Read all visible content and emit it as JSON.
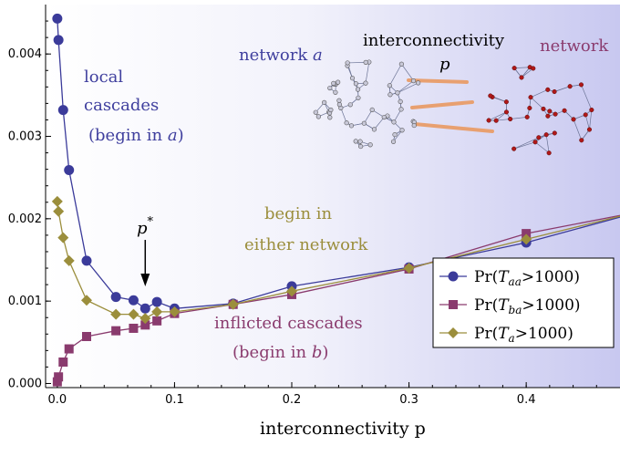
{
  "chart_data": {
    "type": "line",
    "title": "",
    "xlabel": "interconnectivity p",
    "ylabel": "",
    "xlim": [
      -0.01,
      0.48
    ],
    "ylim": [
      -5e-05,
      0.0046
    ],
    "grid": false,
    "legend_placement": "bottom-right",
    "x_ticks": [
      0.0,
      0.1,
      0.2,
      0.3,
      0.4
    ],
    "x_tick_labels": [
      "0.0",
      "0.1",
      "0.2",
      "0.3",
      "0.4"
    ],
    "y_ticks": [
      0.0,
      0.001,
      0.002,
      0.003,
      0.004
    ],
    "y_tick_labels": [
      "0.000",
      "0.001",
      "0.002",
      "0.003",
      "0.004"
    ],
    "series": [
      {
        "name": "Pr(Taa>1000)",
        "name_parts": [
          "Pr(",
          "T",
          "aa",
          ">1000)"
        ],
        "color": "#3b3b9a",
        "marker": "circle",
        "x": [
          0.0,
          0.001,
          0.005,
          0.01,
          0.025,
          0.05,
          0.065,
          0.075,
          0.085,
          0.1,
          0.15,
          0.2,
          0.3,
          0.4,
          0.48
        ],
        "y": [
          0.00443,
          0.00417,
          0.00332,
          0.00259,
          0.00149,
          0.00105,
          0.00101,
          0.00091,
          0.00099,
          0.00091,
          0.00097,
          0.00118,
          0.00141,
          0.00171,
          0.00202
        ]
      },
      {
        "name": "Pr(Tba>1000)",
        "name_parts": [
          "Pr(",
          "T",
          "ba",
          ">1000)"
        ],
        "color": "#8a3b6e",
        "marker": "square",
        "x": [
          0.0,
          0.001,
          0.005,
          0.01,
          0.025,
          0.05,
          0.065,
          0.075,
          0.085,
          0.1,
          0.15,
          0.2,
          0.3,
          0.4,
          0.48
        ],
        "y": [
          2e-05,
          8e-05,
          0.00026,
          0.00042,
          0.00057,
          0.00064,
          0.00067,
          0.00071,
          0.00076,
          0.00085,
          0.00096,
          0.00108,
          0.00139,
          0.00182,
          0.00204
        ]
      },
      {
        "name": "Pr(Ta>1000)",
        "name_parts": [
          "Pr(",
          "T",
          "a",
          ">1000)"
        ],
        "color": "#9b8e3c",
        "marker": "diamond",
        "x": [
          0.0,
          0.001,
          0.005,
          0.01,
          0.025,
          0.05,
          0.065,
          0.075,
          0.085,
          0.1,
          0.15,
          0.2,
          0.3,
          0.4,
          0.48
        ],
        "y": [
          0.00221,
          0.00209,
          0.00177,
          0.00149,
          0.00101,
          0.00084,
          0.00084,
          0.00079,
          0.00087,
          0.00087,
          0.00096,
          0.00112,
          0.0014,
          0.00175,
          0.00203
        ]
      }
    ],
    "annotations": {
      "local_1": "local",
      "local_2": "cascades",
      "local_3": "(begin in ",
      "local_3_var": "a",
      "local_3_end": ")",
      "either_1": "begin in",
      "either_2": "either network",
      "inflicted_1": "inflicted cascades",
      "inflicted_2": "(begin in ",
      "inflicted_2_var": "b",
      "inflicted_2_end": ")",
      "pstar": "p",
      "pstar_sup": "*",
      "pstar_x": 0.075,
      "network_a": "network ",
      "network_a_var": "a",
      "interconnectivity": "interconnectivity",
      "interconnectivity_p": "p",
      "network_b": "network"
    },
    "colors": {
      "annotation_a": "#3f3f9e",
      "annotation_b": "#8a3b6e",
      "annotation_either": "#9b8e3c",
      "interlink": "#e8a070",
      "node_a": "#c8c8d8",
      "node_b": "#b01818"
    }
  }
}
